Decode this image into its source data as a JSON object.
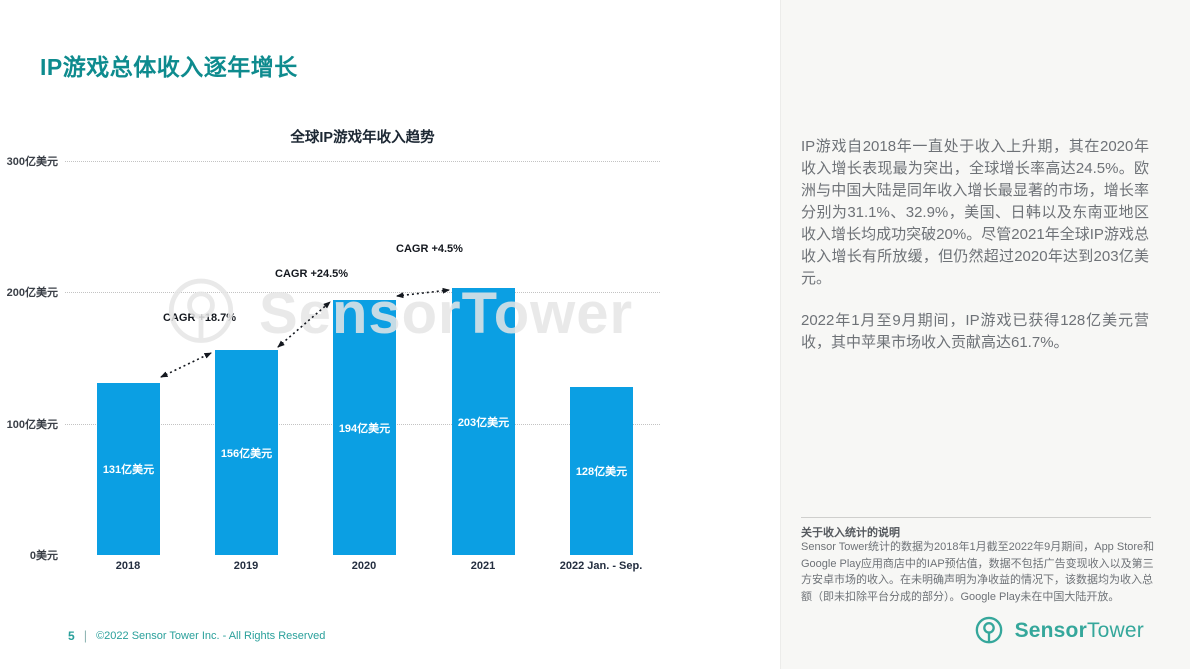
{
  "header": {
    "title": "IP游戏总体收入逐年增长"
  },
  "chart_data": {
    "type": "bar",
    "title": "全球IP游戏年收入趋势",
    "categories": [
      "2018",
      "2019",
      "2020",
      "2021",
      "2022 Jan. - Sep."
    ],
    "values": [
      131,
      156,
      194,
      203,
      128
    ],
    "bar_labels": [
      "131亿美元",
      "156亿美元",
      "194亿美元",
      "203亿美元",
      "128亿美元"
    ],
    "unit": "亿美元",
    "ylabel": "",
    "xlabel": "",
    "y_ticks": [
      "300亿美元",
      "200亿美元",
      "100亿美元",
      "0美元"
    ],
    "ylim": [
      0,
      300
    ],
    "grid": "horizontal-dotted",
    "legend": "none",
    "bar_color": "#0B9FE3",
    "cagr": [
      {
        "label": "CAGR +18.7%",
        "from": "2018",
        "to": "2019"
      },
      {
        "label": "CAGR +24.5%",
        "from": "2019",
        "to": "2020"
      },
      {
        "label": "CAGR +4.5%",
        "from": "2020",
        "to": "2021"
      }
    ]
  },
  "watermark": {
    "text": "SensorTower"
  },
  "right_panel": {
    "paragraphs": [
      "IP游戏自2018年一直处于收入上升期，其在2020年收入增长表现最为突出，全球增长率高达24.5%。欧洲与中国大陆是同年收入增长最显著的市场，增长率分别为31.1%、32.9%，美国、日韩以及东南亚地区收入增长均成功突破20%。尽管2021年全球IP游戏总收入增长有所放缓，但仍然超过2020年达到203亿美元。",
      "2022年1月至9月期间，IP游戏已获得128亿美元营收，其中苹果市场收入贡献高达61.7%。"
    ],
    "footnote": {
      "heading": "关于收入统计的说明",
      "body": "Sensor Tower统计的数据为2018年1月截至2022年9月期间，App Store和Google Play应用商店中的IAP预估值，数据不包括广告变现收入以及第三方安卓市场的收入。在未明确声明为净收益的情况下，该数据均为收入总额（即未扣除平台分成的部分）。Google Play未在中国大陆开放。"
    }
  },
  "footer": {
    "page_number": "5",
    "separator": "|",
    "copyright": "©2022 Sensor Tower Inc. - All Rights Reserved"
  },
  "logo": {
    "sensor": "Sensor",
    "tower": "Tower"
  }
}
